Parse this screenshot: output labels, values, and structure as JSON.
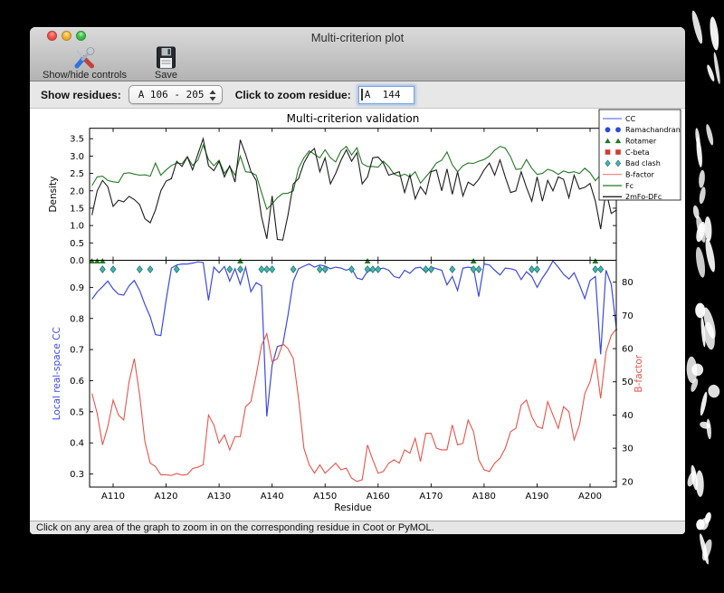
{
  "window": {
    "title": "Multi-criterion plot"
  },
  "toolbar": {
    "show_hide_label": "Show/hide controls",
    "save_label": "Save"
  },
  "controls": {
    "show_residues_label": "Show residues:",
    "residue_range_value": "A 106 - 205",
    "zoom_residue_label": "Click to zoom residue:",
    "zoom_residue_value": "A  144"
  },
  "status": {
    "text": "Click on any area of the graph to zoom in on the corresponding residue in Coot or PyMOL."
  },
  "chart_data": {
    "type": "line",
    "title": "Multi-criterion validation",
    "xlabel": "Residue",
    "x_start": 106,
    "x_ticks": [
      "A110",
      "A120",
      "A130",
      "A140",
      "A150",
      "A160",
      "A170",
      "A180",
      "A190",
      "A200"
    ],
    "x_tick_values": [
      110,
      120,
      130,
      140,
      150,
      160,
      170,
      180,
      190,
      200
    ],
    "xlim": [
      105.56,
      204.95
    ],
    "top": {
      "ylabel": "Density",
      "yticks": [
        "0.0",
        "0.5",
        "1.0",
        "1.5",
        "2.0",
        "2.5",
        "3.0",
        "3.5"
      ],
      "ytick_values": [
        0,
        0.5,
        1,
        1.5,
        2,
        2.5,
        3,
        3.5
      ],
      "ylim": [
        0,
        3.8
      ],
      "series": [
        {
          "name": "Fc",
          "color": "#257825",
          "values": [
            2.15,
            2.4,
            2.42,
            2.3,
            2.26,
            2.24,
            2.5,
            2.52,
            2.48,
            2.45,
            2.46,
            2.42,
            2.8,
            2.45,
            2.6,
            2.73,
            2.8,
            2.78,
            2.98,
            2.73,
            2.88,
            3.32,
            2.9,
            2.72,
            2.88,
            2.5,
            2.7,
            2.45,
            3.0,
            2.55,
            2.53,
            2.45,
            1.95,
            1.47,
            1.62,
            1.8,
            1.92,
            1.93,
            2.0,
            2.65,
            2.95,
            3.15,
            3.05,
            2.95,
            3.18,
            2.95,
            2.83,
            3.15,
            3.28,
            3.03,
            3.24,
            2.78,
            2.7,
            2.7,
            2.68,
            2.85,
            2.7,
            2.48,
            2.42,
            2.48,
            2.4,
            2.55,
            2.22,
            2.4,
            2.58,
            2.8,
            2.88,
            3.12,
            2.75,
            2.55,
            2.72,
            2.8,
            2.79,
            2.85,
            2.9,
            3.0,
            3.17,
            3.28,
            3.23,
            2.98,
            2.62,
            2.63,
            2.9,
            2.65,
            2.47,
            2.5,
            2.62,
            2.57,
            2.47,
            2.57,
            2.52,
            2.55,
            2.5,
            2.65,
            2.52,
            2.29,
            2.46,
            2.78,
            2.72,
            2.76
          ]
        },
        {
          "name": "2mFo-DFc",
          "color": "#1c1c1c",
          "values": [
            1.3,
            2.0,
            2.3,
            2.12,
            1.55,
            1.73,
            1.68,
            1.84,
            1.75,
            1.6,
            1.2,
            1.08,
            1.45,
            2.0,
            2.28,
            2.35,
            2.85,
            2.7,
            2.98,
            2.6,
            3.06,
            3.5,
            2.72,
            2.58,
            2.85,
            2.4,
            2.72,
            2.25,
            3.47,
            3.05,
            2.56,
            2.3,
            1.25,
            0.62,
            1.85,
            0.6,
            0.58,
            1.3,
            2.2,
            2.35,
            2.8,
            3.08,
            3.22,
            2.55,
            2.95,
            2.2,
            2.5,
            2.88,
            3.18,
            2.85,
            3.1,
            2.2,
            2.4,
            2.95,
            2.97,
            2.8,
            2.45,
            2.5,
            2.55,
            1.95,
            2.46,
            1.77,
            2.12,
            1.9,
            2.55,
            2.6,
            2.0,
            2.63,
            1.9,
            2.55,
            1.85,
            2.25,
            2.15,
            2.33,
            2.6,
            2.8,
            2.45,
            2.89,
            2.4,
            1.95,
            2.0,
            2.55,
            2.1,
            1.7,
            2.4,
            1.7,
            2.3,
            2.0,
            2.4,
            2.33,
            1.8,
            2.45,
            2.05,
            2.1,
            2.21,
            1.7,
            0.9,
            2.0,
            1.35,
            1.45
          ]
        }
      ]
    },
    "bottom": {
      "ylabel_left": "Local real-space CC",
      "ylabel_right": "B-factor",
      "yticks_left": [
        "0.3",
        "0.4",
        "0.5",
        "0.6",
        "0.7",
        "0.8",
        "0.9"
      ],
      "ytick_values_left": [
        0.3,
        0.4,
        0.5,
        0.6,
        0.7,
        0.8,
        0.9
      ],
      "ylim_left": [
        0.258,
        0.987
      ],
      "yticks_right": [
        "20",
        "30",
        "40",
        "50",
        "60",
        "70",
        "80"
      ],
      "ytick_values_right": [
        20,
        30,
        40,
        50,
        60,
        70,
        80
      ],
      "ylim_right": [
        18.3,
        86.6
      ],
      "series_left": [
        {
          "name": "CC",
          "color": "#3d4ae0",
          "values": [
            0.862,
            0.885,
            0.902,
            0.92,
            0.895,
            0.878,
            0.875,
            0.905,
            0.922,
            0.89,
            0.845,
            0.805,
            0.748,
            0.745,
            0.86,
            0.962,
            0.972,
            0.975,
            0.975,
            0.978,
            0.982,
            0.98,
            0.858,
            0.965,
            0.947,
            0.967,
            0.92,
            0.96,
            0.91,
            0.965,
            0.886,
            0.915,
            0.905,
            0.485,
            0.65,
            0.71,
            0.715,
            0.81,
            0.92,
            0.96,
            0.968,
            0.975,
            0.965,
            0.972,
            0.968,
            0.96,
            0.965,
            0.962,
            0.955,
            0.962,
            0.93,
            0.925,
            0.952,
            0.955,
            0.958,
            0.962,
            0.955,
            0.935,
            0.93,
            0.955,
            0.945,
            0.962,
            0.965,
            0.948,
            0.965,
            0.96,
            0.955,
            0.908,
            0.935,
            0.89,
            0.962,
            0.965,
            0.962,
            0.87,
            0.975,
            0.972,
            0.955,
            0.94,
            0.962,
            0.96,
            0.955,
            0.925,
            0.95,
            0.935,
            0.9,
            0.93,
            0.955,
            0.985,
            0.965,
            0.942,
            0.927,
            0.947,
            0.908,
            0.864,
            0.922,
            0.935,
            0.685,
            0.955,
            0.91,
            0.762
          ]
        }
      ],
      "series_right": [
        {
          "name": "B-factor",
          "color": "#e8544c",
          "values": [
            46.5,
            40.5,
            31,
            36.5,
            44.5,
            40,
            38.5,
            50,
            57,
            46,
            32,
            25.5,
            24.5,
            22,
            22,
            21.8,
            22.4,
            21.9,
            22.1,
            23.9,
            24.3,
            25,
            40,
            37,
            31.5,
            34,
            29.5,
            33.5,
            33.5,
            42.5,
            44,
            52,
            61,
            64.5,
            56,
            57,
            61.5,
            60,
            57,
            45,
            30,
            25,
            22.5,
            25,
            22.5,
            24,
            25.5,
            23.5,
            24,
            21,
            20,
            20.5,
            31,
            26.5,
            22.5,
            23,
            25.5,
            26.5,
            25.5,
            29.5,
            28.5,
            33,
            26,
            34.5,
            34.5,
            30,
            29.5,
            29.5,
            37,
            31,
            31.5,
            38.5,
            35,
            26.5,
            23.5,
            23,
            25.5,
            27,
            30,
            35,
            36,
            43,
            44.5,
            39.5,
            36.5,
            36,
            44,
            40,
            36,
            42.5,
            41,
            32.5,
            37,
            46.5,
            50,
            57,
            45,
            59,
            64,
            66
          ]
        }
      ],
      "markers": {
        "rotamer": {
          "name": "Rotamer",
          "color": "#1f7a1f",
          "y": 0.9845,
          "residues": [
            106,
            107,
            108,
            134,
            158,
            178,
            201
          ]
        },
        "bad_clash": {
          "name": "Bad clash",
          "color": "#45b5ae",
          "edge": "#1b6b66",
          "y": 0.958,
          "residues": [
            108,
            110,
            115,
            117,
            122,
            132,
            134,
            138,
            139,
            140,
            144,
            149,
            150,
            155,
            158,
            159,
            160,
            169,
            170,
            174,
            178,
            179,
            189,
            190,
            201,
            202
          ]
        },
        "ramachandran": {
          "name": "Ramachandran",
          "color": "#2b48d8",
          "residues": []
        },
        "c_beta": {
          "name": "C-beta",
          "color": "#d43a32",
          "residues": []
        }
      }
    },
    "legend": [
      {
        "label": "CC",
        "type": "line",
        "color": "#6b79f8"
      },
      {
        "label": "Ramachandran",
        "type": "circle",
        "color": "#2b48d8"
      },
      {
        "label": "Rotamer",
        "type": "triangle",
        "color": "#1f7a1f"
      },
      {
        "label": "C-beta",
        "type": "square",
        "color": "#d43a32"
      },
      {
        "label": "Bad clash",
        "type": "diamond",
        "color": "#45b5ae"
      },
      {
        "label": "B-factor",
        "type": "line",
        "color": "#f28a7d"
      },
      {
        "label": "Fc",
        "type": "line",
        "color": "#1e7a1e"
      },
      {
        "label": "2mFo-DFc",
        "type": "line",
        "color": "#222222"
      }
    ]
  }
}
